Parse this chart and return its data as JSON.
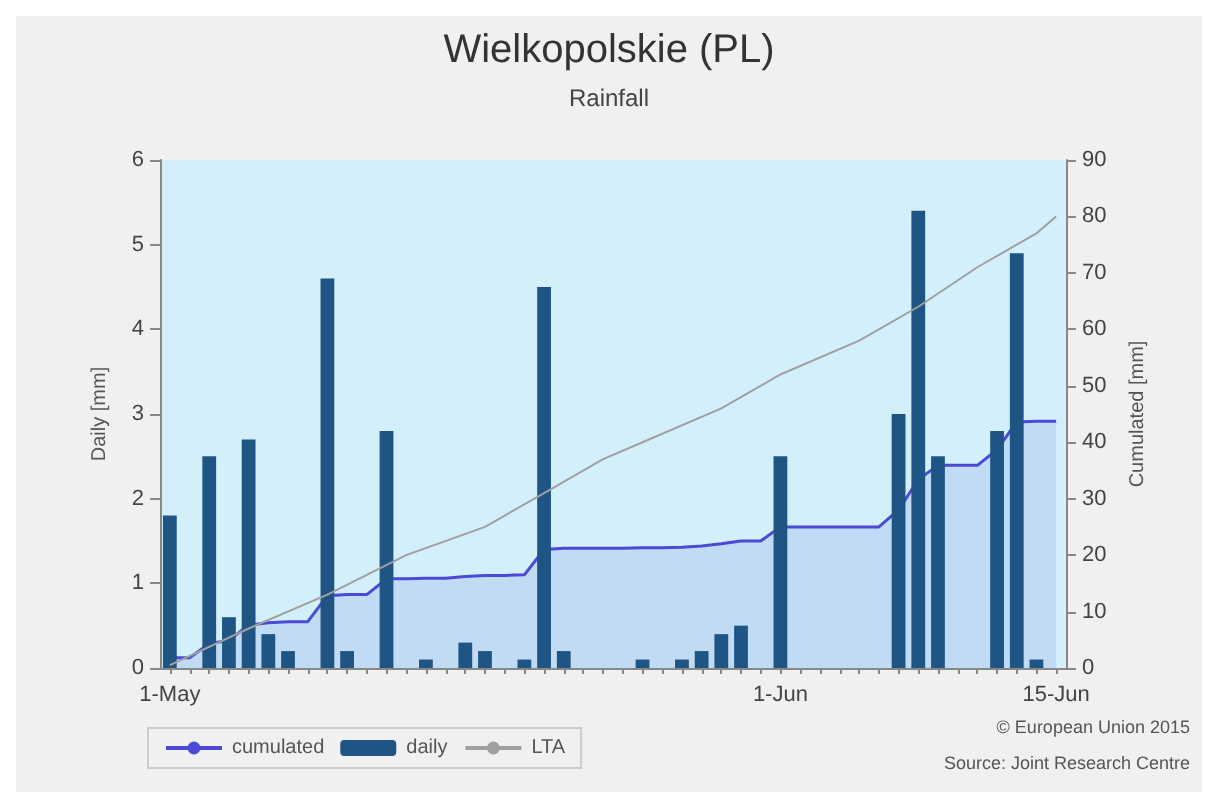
{
  "chart_data": {
    "type": "bar",
    "title": "Wielkopolskie (PL)",
    "subtitle": "Rainfall",
    "ylabel": "Daily [mm]",
    "y2label": "Cumulated [mm]",
    "categories": [
      "1-May",
      null,
      null,
      null,
      null,
      null,
      null,
      null,
      null,
      null,
      null,
      null,
      null,
      null,
      null,
      null,
      null,
      null,
      null,
      null,
      null,
      null,
      null,
      null,
      null,
      null,
      null,
      null,
      null,
      null,
      null,
      "1-Jun",
      null,
      null,
      null,
      null,
      null,
      null,
      null,
      null,
      null,
      null,
      null,
      null,
      null,
      "15-Jun"
    ],
    "series": [
      {
        "name": "cumulated",
        "type": "area",
        "axis": "y2",
        "color": "#4a4ad6",
        "values": [
          1.8,
          1.8,
          4.3,
          4.9,
          7.6,
          8.0,
          8.2,
          8.2,
          12.8,
          13.0,
          13.0,
          15.8,
          15.8,
          15.9,
          15.9,
          16.2,
          16.4,
          16.4,
          16.5,
          21.0,
          21.2,
          21.2,
          21.2,
          21.2,
          21.3,
          21.3,
          21.4,
          21.6,
          22.0,
          22.5,
          22.5,
          25.0,
          25.0,
          25.0,
          25.0,
          25.0,
          25.0,
          28.0,
          33.4,
          35.9,
          35.9,
          35.9,
          38.7,
          43.6,
          43.7,
          43.7
        ]
      },
      {
        "name": "daily",
        "color": "#1f5585",
        "values": [
          1.8,
          0,
          2.5,
          0.6,
          2.7,
          0.4,
          0.2,
          0,
          4.6,
          0.2,
          0,
          2.8,
          0,
          0.1,
          0,
          0.3,
          0.2,
          0,
          0.1,
          4.5,
          0.2,
          0,
          0,
          0,
          0.1,
          0,
          0.1,
          0.2,
          0.4,
          0.5,
          0,
          2.5,
          0,
          0,
          0,
          0,
          0,
          3.0,
          5.4,
          2.5,
          0,
          0,
          2.8,
          4.9,
          0.1,
          0
        ]
      },
      {
        "name": "LTA",
        "type": "line",
        "axis": "y2",
        "color": "#a0a0a0",
        "values": [
          0.5,
          null,
          null,
          null,
          7,
          null,
          null,
          null,
          13,
          null,
          null,
          null,
          20,
          null,
          null,
          null,
          25,
          null,
          null,
          31,
          null,
          null,
          37,
          null,
          40,
          null,
          null,
          null,
          46,
          null,
          null,
          52,
          null,
          null,
          null,
          58,
          null,
          null,
          64,
          null,
          null,
          71,
          null,
          null,
          77,
          80
        ]
      }
    ],
    "ylim": [
      0,
      6
    ],
    "yticks": [
      0,
      1,
      2,
      3,
      4,
      5,
      6
    ],
    "y2lim": [
      0,
      90
    ],
    "y2ticks": [
      0,
      10,
      20,
      30,
      40,
      50,
      60,
      70,
      80,
      90
    ],
    "grid": false,
    "legend": "bottom left",
    "marker": "none",
    "annotations": [
      "© European Union 2015",
      "Source: Joint Research Centre"
    ]
  }
}
